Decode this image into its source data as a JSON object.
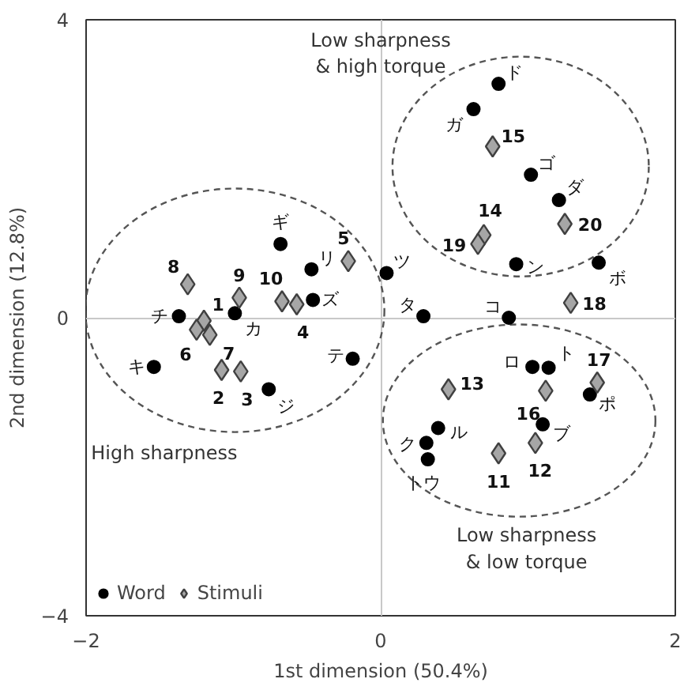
{
  "chart_data": {
    "type": "scatter",
    "xlabel": "1st dimension (50.4%)",
    "ylabel": "2nd dimension (12.8%)",
    "xlim": [
      -2,
      2
    ],
    "ylim": [
      -4,
      4
    ],
    "xticks": [
      -2,
      0,
      2
    ],
    "yticks": [
      -4,
      0,
      4
    ],
    "grid": true,
    "legend": "bottom left",
    "series": [
      {
        "name": "Word",
        "color": "#000000",
        "marker": "circle",
        "x": [
          -0.68,
          -0.47,
          0.04,
          -0.46,
          -0.99,
          -1.37,
          -1.54,
          -0.19,
          -0.76,
          0.8,
          0.63,
          1.02,
          1.21,
          0.92,
          1.48,
          0.29,
          0.87,
          1.03,
          1.14,
          1.42,
          1.1,
          0.39,
          0.31,
          0.32
        ],
        "values": [
          0.99,
          0.65,
          0.6,
          0.24,
          0.06,
          0.02,
          -0.66,
          -0.55,
          -0.96,
          3.14,
          2.8,
          1.92,
          1.58,
          0.72,
          0.74,
          0.02,
          0.0,
          -0.66,
          -0.67,
          -1.03,
          -1.43,
          -1.48,
          -1.68,
          -1.9
        ]
      },
      {
        "name": "Stimuli",
        "color": "#a6a6a6",
        "marker": "diamond",
        "x": [
          -1.2,
          -1.08,
          -0.95,
          -0.57,
          -0.22,
          -1.25,
          -1.16,
          -1.31,
          -0.96,
          -0.67,
          0.8,
          1.05,
          0.46,
          0.7,
          0.76,
          1.12,
          1.47,
          1.29,
          0.66,
          1.25
        ],
        "values": [
          -0.04,
          -0.7,
          -0.72,
          0.18,
          0.76,
          -0.16,
          -0.23,
          0.45,
          0.27,
          0.22,
          -1.82,
          -1.68,
          -0.96,
          1.11,
          2.3,
          -0.98,
          -0.87,
          0.2,
          0.99,
          1.26
        ]
      }
    ],
    "annotations": [
      "Low sharpness\n& high torque",
      "High sharpness",
      "Low sharpness\n& low torque",
      {
        "text": "ギ",
        "x": -0.68,
        "y": 0.99
      },
      {
        "text": "リ",
        "x": -0.47,
        "y": 0.65
      },
      {
        "text": "ツ",
        "x": 0.04,
        "y": 0.6
      },
      {
        "text": "ズ",
        "x": -0.46,
        "y": 0.24
      },
      {
        "text": "カ",
        "x": -0.99,
        "y": 0.06
      },
      {
        "text": "チ",
        "x": -1.37,
        "y": 0.02
      },
      {
        "text": "キ",
        "x": -1.54,
        "y": -0.66
      },
      {
        "text": "テ",
        "x": -0.19,
        "y": -0.55
      },
      {
        "text": "ジ",
        "x": -0.76,
        "y": -0.96
      },
      {
        "text": "ド",
        "x": 0.8,
        "y": 3.14
      },
      {
        "text": "ガ",
        "x": 0.63,
        "y": 2.8
      },
      {
        "text": "ゴ",
        "x": 1.02,
        "y": 1.92
      },
      {
        "text": "ダ",
        "x": 1.21,
        "y": 1.58
      },
      {
        "text": "ン",
        "x": 0.92,
        "y": 0.72
      },
      {
        "text": "ボ",
        "x": 1.48,
        "y": 0.74
      },
      {
        "text": "タ",
        "x": 0.29,
        "y": 0.02
      },
      {
        "text": "コ",
        "x": 0.87,
        "y": 0.0
      },
      {
        "text": "ロ",
        "x": 1.03,
        "y": -0.66
      },
      {
        "text": "ト",
        "x": 1.14,
        "y": -0.67
      },
      {
        "text": "ポ",
        "x": 1.42,
        "y": -1.03
      },
      {
        "text": "ブ",
        "x": 1.1,
        "y": -1.43
      },
      {
        "text": "ル",
        "x": 0.39,
        "y": -1.48
      },
      {
        "text": "ク",
        "x": 0.31,
        "y": -1.68
      },
      {
        "text": "トウ",
        "x": 0.32,
        "y": -1.9
      },
      {
        "text": "1",
        "x": -1.2,
        "y": -0.04
      },
      {
        "text": "2",
        "x": -1.08,
        "y": -0.7
      },
      {
        "text": "3",
        "x": -0.95,
        "y": -0.72
      },
      {
        "text": "4",
        "x": -0.57,
        "y": 0.18
      },
      {
        "text": "5",
        "x": -0.22,
        "y": 0.76
      },
      {
        "text": "6",
        "x": -1.25,
        "y": -0.16
      },
      {
        "text": "7",
        "x": -1.16,
        "y": -0.23
      },
      {
        "text": "8",
        "x": -1.31,
        "y": 0.45
      },
      {
        "text": "9",
        "x": -0.96,
        "y": 0.27
      },
      {
        "text": "10",
        "x": -0.67,
        "y": 0.22
      },
      {
        "text": "11",
        "x": 0.8,
        "y": -1.82
      },
      {
        "text": "12",
        "x": 1.05,
        "y": -1.68
      },
      {
        "text": "13",
        "x": 0.46,
        "y": -0.96
      },
      {
        "text": "14",
        "x": 0.7,
        "y": 1.11
      },
      {
        "text": "15",
        "x": 0.76,
        "y": 2.3
      },
      {
        "text": "16",
        "x": 1.12,
        "y": -0.98
      },
      {
        "text": "17",
        "x": 1.47,
        "y": -0.87
      },
      {
        "text": "18",
        "x": 1.29,
        "y": 0.2
      },
      {
        "text": "19",
        "x": 0.66,
        "y": 0.99
      },
      {
        "text": "20",
        "x": 1.25,
        "y": 1.26
      }
    ]
  }
}
